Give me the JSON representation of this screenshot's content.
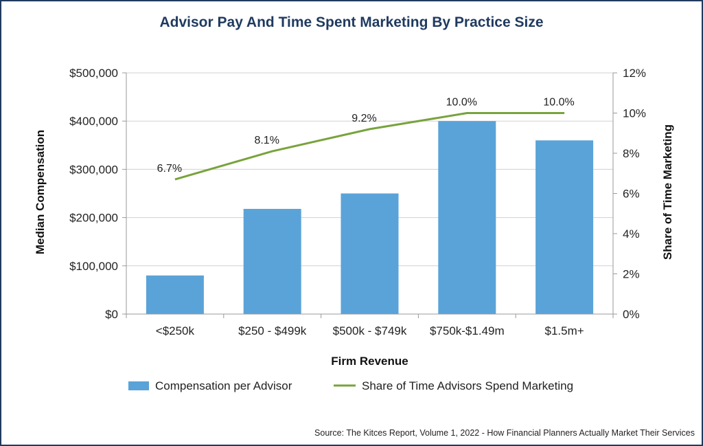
{
  "chart_data": {
    "type": "bar",
    "title": "Advisor Pay And Time Spent Marketing By Practice Size",
    "xlabel": "Firm Revenue",
    "ylabel": "Median Compensation",
    "y2label": "Share of Time Marketing",
    "categories": [
      "<$250k",
      "$250 - $499k",
      "$500k - $749k",
      "$750k-$1.49m",
      "$1.5m+"
    ],
    "ylim": [
      0,
      500000
    ],
    "y_ticks": [
      "$0",
      "$100,000",
      "$200,000",
      "$300,000",
      "$400,000",
      "$500,000"
    ],
    "y2lim": [
      0,
      12
    ],
    "y2_ticks": [
      "0%",
      "2%",
      "4%",
      "6%",
      "8%",
      "10%",
      "12%"
    ],
    "series": [
      {
        "name": "Compensation per Advisor",
        "kind": "bar",
        "axis": "left",
        "color": "#5aa3d8",
        "values": [
          80000,
          218000,
          250000,
          400000,
          360000
        ]
      },
      {
        "name": "Share of Time Advisors Spend Marketing",
        "kind": "line",
        "axis": "right",
        "color": "#78a33c",
        "values": [
          6.7,
          8.1,
          9.2,
          10.0,
          10.0
        ],
        "labels": [
          "6.7%",
          "8.1%",
          "9.2%",
          "10.0%",
          "10.0%"
        ]
      }
    ],
    "grid": true,
    "legend": "bottom"
  },
  "source": "Source: The Kitces Report, Volume 1, 2022 - How Financial Planners Actually Market Their Services"
}
